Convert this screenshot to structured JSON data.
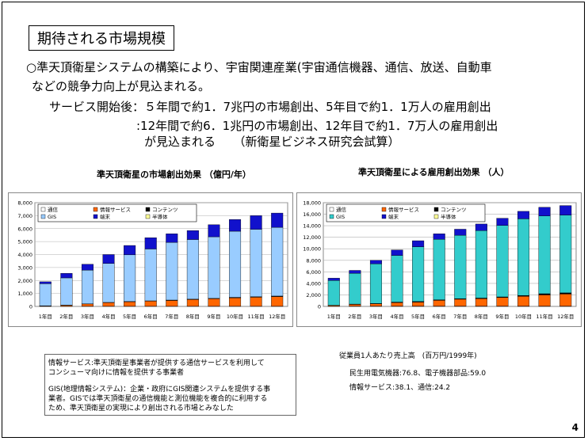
{
  "slide": {
    "title": "期待される市場規模",
    "page_number": "4",
    "bullet_line1": "○準天頂衛星システムの構築により、宇宙関連産業(宇宙通信機器、通信、放送、自動車",
    "bullet_line2": "などの競争力向上が見込まれる。",
    "service_line1": "サービス開始後：５年間で約1．7兆円の市場創出、5年目で約1．1万人の雇用創出",
    "service_line2": ":12年間で約6．1兆円の市場創出、12年目で約1．7万人の雇用創出",
    "service_line3": "が見込まれる　　（新衛星ビジネス研究会試算）"
  },
  "notes": {
    "box_line1": "情報サービス:準天頂衛星事業者が提供する通信サービスを利用して",
    "box_line2": "コンシューマ向けに情報を提供する事業者",
    "box_line3": "GIS(地理情報システム)：企業・政府にGIS関連システムを提供する事",
    "box_line4": "業者。GISでは準天頂衛星の通信機能と測位機能を複合的に利用する",
    "box_line5": "ため、準天頂衛星の実現により創出される市場とみなした",
    "right_line1": "従業員1人あたり売上高　(百万円/1999年)",
    "right_line2": "民生用電気機器:76.8、電子機器部品:59.0",
    "right_line3": "情報サービス:38.1、通信:24.2"
  },
  "colors": {
    "通信": "#ffffff",
    "情報サービス": "#ff6600",
    "コンテンツ": "#000000",
    "GIS": "#99ccff",
    "GIS_right": "#33cccc",
    "端末": "#1111cc",
    "半導体": "#ffff99"
  },
  "chart_data": [
    {
      "type": "bar",
      "stacked": true,
      "title": "準天頂衛星の市場創出効果 （億円/年）",
      "categories": [
        "1年目",
        "2年目",
        "3年目",
        "4年目",
        "5年目",
        "6年目",
        "7年目",
        "8年目",
        "9年目",
        "10年目",
        "11年目",
        "12年目"
      ],
      "ylim": [
        0,
        8000
      ],
      "yticks": [
        "0",
        "1,000",
        "2,000",
        "3,000",
        "4,000",
        "5,000",
        "6,000",
        "7,000",
        "8,000"
      ],
      "legend_placement": "top-left",
      "series": [
        {
          "name": "通信",
          "values": [
            10,
            10,
            10,
            10,
            10,
            10,
            10,
            10,
            10,
            10,
            10,
            10
          ]
        },
        {
          "name": "情報サービス",
          "values": [
            30,
            80,
            180,
            280,
            350,
            400,
            450,
            520,
            580,
            650,
            700,
            750
          ]
        },
        {
          "name": "コンテンツ",
          "values": [
            10,
            10,
            10,
            20,
            20,
            20,
            30,
            30,
            30,
            40,
            40,
            40
          ]
        },
        {
          "name": "GIS",
          "values": [
            1700,
            2100,
            2600,
            3000,
            3600,
            4000,
            4450,
            4600,
            4750,
            5100,
            5200,
            5300
          ]
        },
        {
          "name": "端末",
          "values": [
            150,
            350,
            450,
            690,
            720,
            870,
            660,
            690,
            930,
            900,
            1050,
            1100
          ]
        },
        {
          "name": "半導体",
          "values": [
            0,
            0,
            0,
            0,
            0,
            0,
            0,
            0,
            0,
            0,
            0,
            0
          ]
        }
      ]
    },
    {
      "type": "bar",
      "stacked": true,
      "title": "準天頂衛星による雇用創出効果 （人）",
      "categories": [
        "1年目",
        "2年目",
        "3年目",
        "4年目",
        "5年目",
        "6年目",
        "7年目",
        "8年目",
        "9年目",
        "10年目",
        "11年目",
        "12年目"
      ],
      "ylim": [
        0,
        18000
      ],
      "yticks": [
        "0",
        "2,000",
        "4,000",
        "6,000",
        "8,000",
        "10,000",
        "12,000",
        "14,000",
        "16,000",
        "18,000"
      ],
      "legend_placement": "top-left",
      "series": [
        {
          "name": "通信",
          "values": [
            50,
            50,
            50,
            50,
            50,
            50,
            50,
            50,
            50,
            50,
            50,
            50
          ]
        },
        {
          "name": "情報サービス",
          "values": [
            150,
            300,
            400,
            600,
            700,
            1000,
            1200,
            1300,
            1500,
            1700,
            1950,
            2100
          ]
        },
        {
          "name": "コンテンツ",
          "values": [
            0,
            50,
            50,
            100,
            100,
            100,
            100,
            100,
            100,
            150,
            200,
            200
          ]
        },
        {
          "name": "GIS",
          "values": [
            4300,
            5350,
            6900,
            8100,
            9500,
            10500,
            11000,
            11700,
            12400,
            13300,
            13500,
            13500
          ]
        },
        {
          "name": "端末",
          "values": [
            400,
            500,
            600,
            950,
            1050,
            950,
            1050,
            1150,
            1250,
            1300,
            1500,
            1650
          ]
        },
        {
          "name": "半導体",
          "values": [
            0,
            0,
            0,
            0,
            0,
            0,
            0,
            0,
            0,
            0,
            0,
            0
          ]
        }
      ]
    }
  ]
}
